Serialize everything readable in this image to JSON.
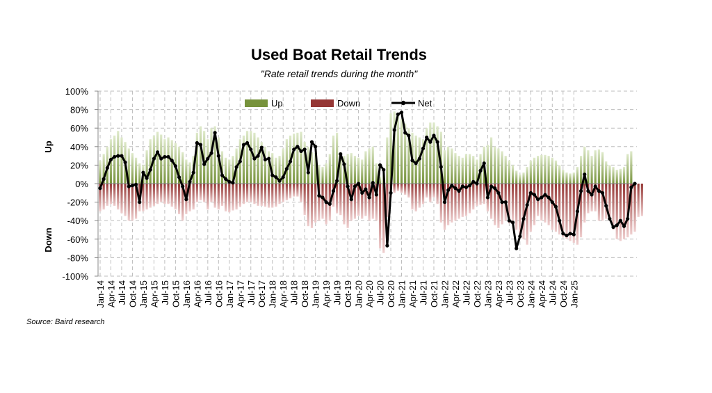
{
  "source": "Source: Baird research",
  "chart_data": {
    "type": "bar",
    "title": "Used Boat Retail Trends",
    "subtitle": "\"Rate retail trends during the month\"",
    "y_side_labels": {
      "top": "Up",
      "bottom": "Down"
    },
    "ylim": [
      -100,
      100
    ],
    "y_ticks": [
      100,
      80,
      60,
      40,
      20,
      0,
      -20,
      -40,
      -60,
      -80,
      -100
    ],
    "y_tick_format": "percent",
    "grid": true,
    "legend_position": "top",
    "x_tick_labels": [
      "Jan-14",
      "Apr-14",
      "Jul-14",
      "Oct-14",
      "Jan-15",
      "Apr-15",
      "Jul-15",
      "Oct-15",
      "Jan-16",
      "Apr-16",
      "Jul-16",
      "Oct-16",
      "Jan-17",
      "Apr-17",
      "Jul-17",
      "Oct-17",
      "Jan-18",
      "Apr-18",
      "Jul-18",
      "Oct-18",
      "Jan-19",
      "Apr-19",
      "Jul-19",
      "Oct-19",
      "Jan-20",
      "Apr-20",
      "Jul-20",
      "Oct-20",
      "Jan-21",
      "Apr-21",
      "Jul-21",
      "Oct-21",
      "Jan-22",
      "Apr-22",
      "Jul-22",
      "Oct-22",
      "Jan-23",
      "Apr-23",
      "Jul-23",
      "Oct-23",
      "Jan-24",
      "Apr-24",
      "Jul-24",
      "Oct-24",
      "Jan-25"
    ],
    "x_tick_every_months": 3,
    "series": [
      {
        "name": "Up",
        "kind": "bar",
        "color": "#77933c",
        "values": [
          25,
          32,
          40,
          48,
          52,
          57,
          50,
          45,
          38,
          33,
          28,
          22,
          20,
          36,
          48,
          52,
          56,
          53,
          48,
          50,
          47,
          44,
          40,
          34,
          26,
          23,
          30,
          55,
          62,
          57,
          48,
          60,
          62,
          50,
          35,
          28,
          26,
          30,
          38,
          48,
          52,
          57,
          57,
          55,
          50,
          45,
          40,
          35,
          33,
          28,
          30,
          38,
          48,
          52,
          54,
          55,
          56,
          45,
          40,
          34,
          33,
          20,
          18,
          22,
          32,
          52,
          55,
          34,
          30,
          32,
          33,
          30,
          28,
          26,
          35,
          38,
          40,
          22,
          8,
          10,
          50,
          76,
          78,
          75,
          70,
          65,
          60,
          55,
          52,
          50,
          48,
          60,
          66,
          66,
          62,
          56,
          36,
          40,
          38,
          33,
          30,
          28,
          32,
          32,
          30,
          26,
          32,
          40,
          42,
          50,
          40,
          38,
          35,
          30,
          25,
          20,
          14,
          10,
          12,
          18,
          25,
          28,
          30,
          31,
          31,
          30,
          28,
          25,
          20,
          15,
          12,
          11,
          12,
          18,
          30,
          40,
          36,
          30,
          36,
          37,
          34,
          24,
          20,
          18,
          15,
          16,
          18,
          32,
          35
        ]
      },
      {
        "name": "Down",
        "kind": "bar",
        "color": "#953735",
        "values": [
          -30,
          -28,
          -24,
          -22,
          -24,
          -28,
          -32,
          -35,
          -40,
          -40,
          -38,
          -30,
          -30,
          -28,
          -26,
          -24,
          -22,
          -20,
          -22,
          -22,
          -25,
          -28,
          -33,
          -40,
          -33,
          -30,
          -28,
          -20,
          -18,
          -20,
          -28,
          -20,
          -26,
          -28,
          -24,
          -30,
          -31,
          -29,
          -28,
          -25,
          -22,
          -20,
          -20,
          -22,
          -24,
          -24,
          -25,
          -26,
          -26,
          -25,
          -22,
          -20,
          -18,
          -16,
          -14,
          -14,
          -20,
          -34,
          -46,
          -48,
          -42,
          -40,
          -38,
          -44,
          -40,
          -25,
          -32,
          -34,
          -44,
          -48,
          -40,
          -38,
          -35,
          -38,
          -35,
          -40,
          -38,
          -40,
          -70,
          -75,
          -36,
          -15,
          -10,
          -8,
          -10,
          -12,
          -15,
          -28,
          -30,
          -26,
          -22,
          -15,
          -20,
          -15,
          -22,
          -42,
          -50,
          -45,
          -42,
          -40,
          -38,
          -36,
          -35,
          -32,
          -28,
          -24,
          -23,
          -22,
          -30,
          -38,
          -45,
          -48,
          -44,
          -40,
          -43,
          -40,
          -50,
          -58,
          -60,
          -66,
          -52,
          -45,
          -35,
          -40,
          -42,
          -45,
          -50,
          -52,
          -55,
          -58,
          -60,
          -62,
          -64,
          -66,
          -58,
          -42,
          -32,
          -30,
          -30,
          -40,
          -40,
          -38,
          -40,
          -50,
          -60,
          -62,
          -60,
          -58,
          -55,
          -52,
          -36,
          -35
        ]
      },
      {
        "name": "Net",
        "kind": "line",
        "color": "#000000",
        "values": [
          -5,
          5,
          17,
          26,
          29,
          30,
          30,
          23,
          -3,
          -2,
          -1,
          -20,
          12,
          6,
          15,
          27,
          34,
          27,
          29,
          29,
          25,
          19,
          7,
          -3,
          -17,
          2,
          12,
          44,
          42,
          21,
          27,
          33,
          55,
          30,
          9,
          5,
          2,
          1,
          18,
          24,
          42,
          44,
          37,
          27,
          30,
          39,
          26,
          27,
          9,
          7,
          3,
          7,
          16,
          24,
          37,
          40,
          35,
          37,
          12,
          45,
          40,
          -13,
          -15,
          -20,
          -22,
          -8,
          3,
          32,
          21,
          -3,
          -17,
          -3,
          0,
          -10,
          -6,
          -15,
          1,
          -12,
          20,
          15,
          -67,
          -10,
          58,
          75,
          77,
          55,
          52,
          25,
          22,
          27,
          38,
          50,
          45,
          52,
          45,
          18,
          -20,
          -7,
          -2,
          -5,
          -8,
          -3,
          -4,
          -2,
          2,
          0,
          14,
          22,
          -15,
          -3,
          -5,
          -10,
          -20,
          -20,
          -40,
          -42,
          -70,
          -57,
          -38,
          -23,
          -10,
          -12,
          -17,
          -15,
          -12,
          -15,
          -20,
          -25,
          -40,
          -54,
          -56,
          -54,
          -55,
          -30,
          -8,
          10,
          -8,
          -12,
          -3,
          -8,
          -10,
          -24,
          -38,
          -47,
          -45,
          -40,
          -46,
          -38,
          -4,
          0
        ]
      }
    ]
  }
}
